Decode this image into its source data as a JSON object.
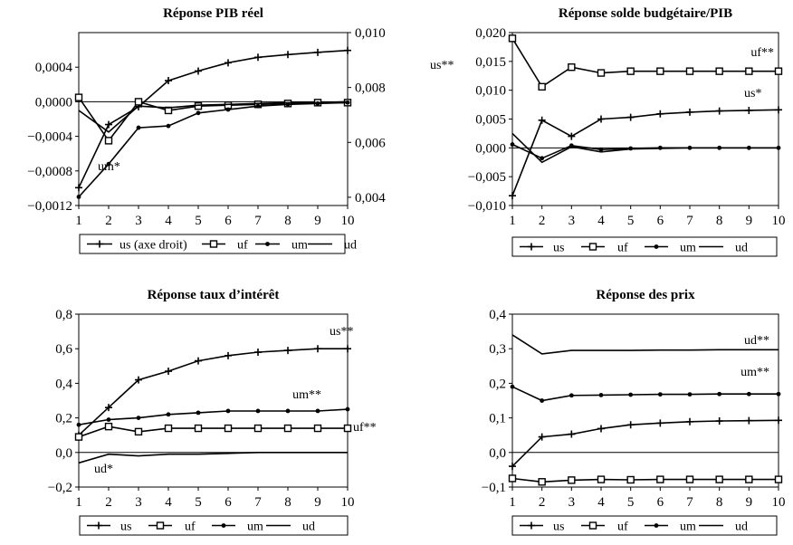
{
  "chart_data": [
    {
      "type": "line",
      "title": "Réponse PIB réel",
      "x": [
        1,
        2,
        3,
        4,
        5,
        6,
        7,
        8,
        9,
        10
      ],
      "yticks": [
        "0,0004",
        "0,0000",
        "−0,0004",
        "−0,0008",
        "−0,0012"
      ],
      "ylim": [
        -0.0012,
        0.0008
      ],
      "y2ticks": [
        "0,010",
        "0,008",
        "0,006",
        "0,004"
      ],
      "y2lim": [
        0.0037,
        0.01
      ],
      "xticks": [
        "1",
        "2",
        "3",
        "4",
        "5",
        "6",
        "7",
        "8",
        "9",
        "10"
      ],
      "legend": [
        "us (axe droit)",
        "uf",
        "um",
        "ud"
      ],
      "series": [
        {
          "name": "us (axe droit)",
          "axis": "right",
          "marker": "plus",
          "values": [
            0.00435,
            0.00665,
            0.0073,
            0.00825,
            0.0086,
            0.0089,
            0.0091,
            0.0092,
            0.00928,
            0.00935
          ]
        },
        {
          "name": "uf",
          "axis": "left",
          "marker": "square",
          "values": [
            5e-05,
            -0.00045,
            0.0,
            -0.0001,
            -5e-05,
            -4e-05,
            -3e-05,
            -2e-05,
            -1e-05,
            -1e-05
          ]
        },
        {
          "name": "um",
          "axis": "left",
          "marker": "dot",
          "values": [
            -0.0011,
            -0.00072,
            -0.0003,
            -0.00028,
            -0.00013,
            -9e-05,
            -5e-05,
            -3e-05,
            -2e-05,
            -1e-05
          ]
        },
        {
          "name": "ud",
          "axis": "left",
          "marker": "none",
          "values": [
            -0.0001,
            -0.00035,
            -5e-05,
            -7e-05,
            -4e-05,
            -3e-05,
            -2e-05,
            -1e-05,
            -1e-05,
            0.0
          ]
        }
      ],
      "annotations": [
        "us**",
        "um*"
      ]
    },
    {
      "type": "line",
      "title": "Réponse solde budgétaire/PIB",
      "x": [
        1,
        2,
        3,
        4,
        5,
        6,
        7,
        8,
        9,
        10
      ],
      "yticks": [
        "0,020",
        "0,015",
        "0,010",
        "0,005",
        "0,000",
        "−0,005",
        "−0,010"
      ],
      "ylim": [
        -0.01,
        0.02
      ],
      "xticks": [
        "1",
        "2",
        "3",
        "4",
        "5",
        "6",
        "7",
        "8",
        "9",
        "10"
      ],
      "legend": [
        "us",
        "uf",
        "um",
        "ud"
      ],
      "series": [
        {
          "name": "us",
          "marker": "plus",
          "values": [
            -0.0083,
            0.0048,
            0.002,
            0.005,
            0.0053,
            0.0059,
            0.0062,
            0.0064,
            0.0065,
            0.0066
          ]
        },
        {
          "name": "uf",
          "marker": "square",
          "values": [
            0.019,
            0.0106,
            0.014,
            0.013,
            0.0133,
            0.0133,
            0.0133,
            0.0133,
            0.0133,
            0.0133
          ]
        },
        {
          "name": "um",
          "marker": "dot",
          "values": [
            0.0006,
            -0.0018,
            0.0004,
            -0.0003,
            -0.0001,
            0.0,
            0.0,
            0.0,
            0.0,
            0.0
          ]
        },
        {
          "name": "ud",
          "marker": "none",
          "values": [
            0.0025,
            -0.0025,
            0.0002,
            -0.0007,
            -0.0002,
            -0.0001,
            0.0,
            0.0,
            0.0,
            0.0
          ]
        }
      ],
      "annotations": [
        "uf**",
        "us*"
      ]
    },
    {
      "type": "line",
      "title": "Réponse taux d’intérêt",
      "x": [
        1,
        2,
        3,
        4,
        5,
        6,
        7,
        8,
        9,
        10
      ],
      "yticks": [
        "0,8",
        "0,6",
        "0,4",
        "0,2",
        "0,0",
        "−0,2"
      ],
      "ylim": [
        -0.2,
        0.8
      ],
      "xticks": [
        "1",
        "2",
        "3",
        "4",
        "5",
        "6",
        "7",
        "8",
        "9",
        "10"
      ],
      "legend": [
        "us",
        "uf",
        "um",
        "ud"
      ],
      "series": [
        {
          "name": "us",
          "marker": "plus",
          "values": [
            0.1,
            0.26,
            0.42,
            0.47,
            0.53,
            0.56,
            0.58,
            0.59,
            0.6,
            0.6
          ]
        },
        {
          "name": "uf",
          "marker": "square",
          "values": [
            0.09,
            0.15,
            0.12,
            0.14,
            0.14,
            0.14,
            0.14,
            0.14,
            0.14,
            0.14
          ]
        },
        {
          "name": "um",
          "marker": "dot",
          "values": [
            0.16,
            0.19,
            0.2,
            0.22,
            0.23,
            0.24,
            0.24,
            0.24,
            0.24,
            0.25
          ]
        },
        {
          "name": "ud",
          "marker": "none",
          "values": [
            -0.06,
            -0.01,
            -0.02,
            -0.01,
            -0.01,
            -0.005,
            0.0,
            0.0,
            0.0,
            0.0
          ]
        }
      ],
      "annotations": [
        "us**",
        "um**",
        "uf**",
        "ud*"
      ]
    },
    {
      "type": "line",
      "title": "Réponse des prix",
      "x": [
        1,
        2,
        3,
        4,
        5,
        6,
        7,
        8,
        9,
        10
      ],
      "yticks": [
        "0,4",
        "0,3",
        "0,2",
        "0,1",
        "0,0",
        "−0,1"
      ],
      "ylim": [
        -0.1,
        0.4
      ],
      "xticks": [
        "1",
        "2",
        "3",
        "4",
        "5",
        "6",
        "7",
        "8",
        "9",
        "10"
      ],
      "legend": [
        "us",
        "uf",
        "um",
        "ud"
      ],
      "series": [
        {
          "name": "us",
          "marker": "plus",
          "values": [
            -0.04,
            0.045,
            0.053,
            0.069,
            0.08,
            0.085,
            0.089,
            0.091,
            0.092,
            0.093
          ]
        },
        {
          "name": "uf",
          "marker": "square",
          "values": [
            -0.075,
            -0.085,
            -0.08,
            -0.078,
            -0.079,
            -0.078,
            -0.078,
            -0.078,
            -0.078,
            -0.078
          ]
        },
        {
          "name": "um",
          "marker": "dot",
          "values": [
            0.19,
            0.15,
            0.165,
            0.166,
            0.167,
            0.168,
            0.168,
            0.169,
            0.169,
            0.169
          ]
        },
        {
          "name": "ud",
          "marker": "none",
          "values": [
            0.34,
            0.285,
            0.295,
            0.295,
            0.295,
            0.296,
            0.296,
            0.297,
            0.297,
            0.297
          ]
        }
      ],
      "annotations": [
        "ud**",
        "um**"
      ]
    }
  ]
}
